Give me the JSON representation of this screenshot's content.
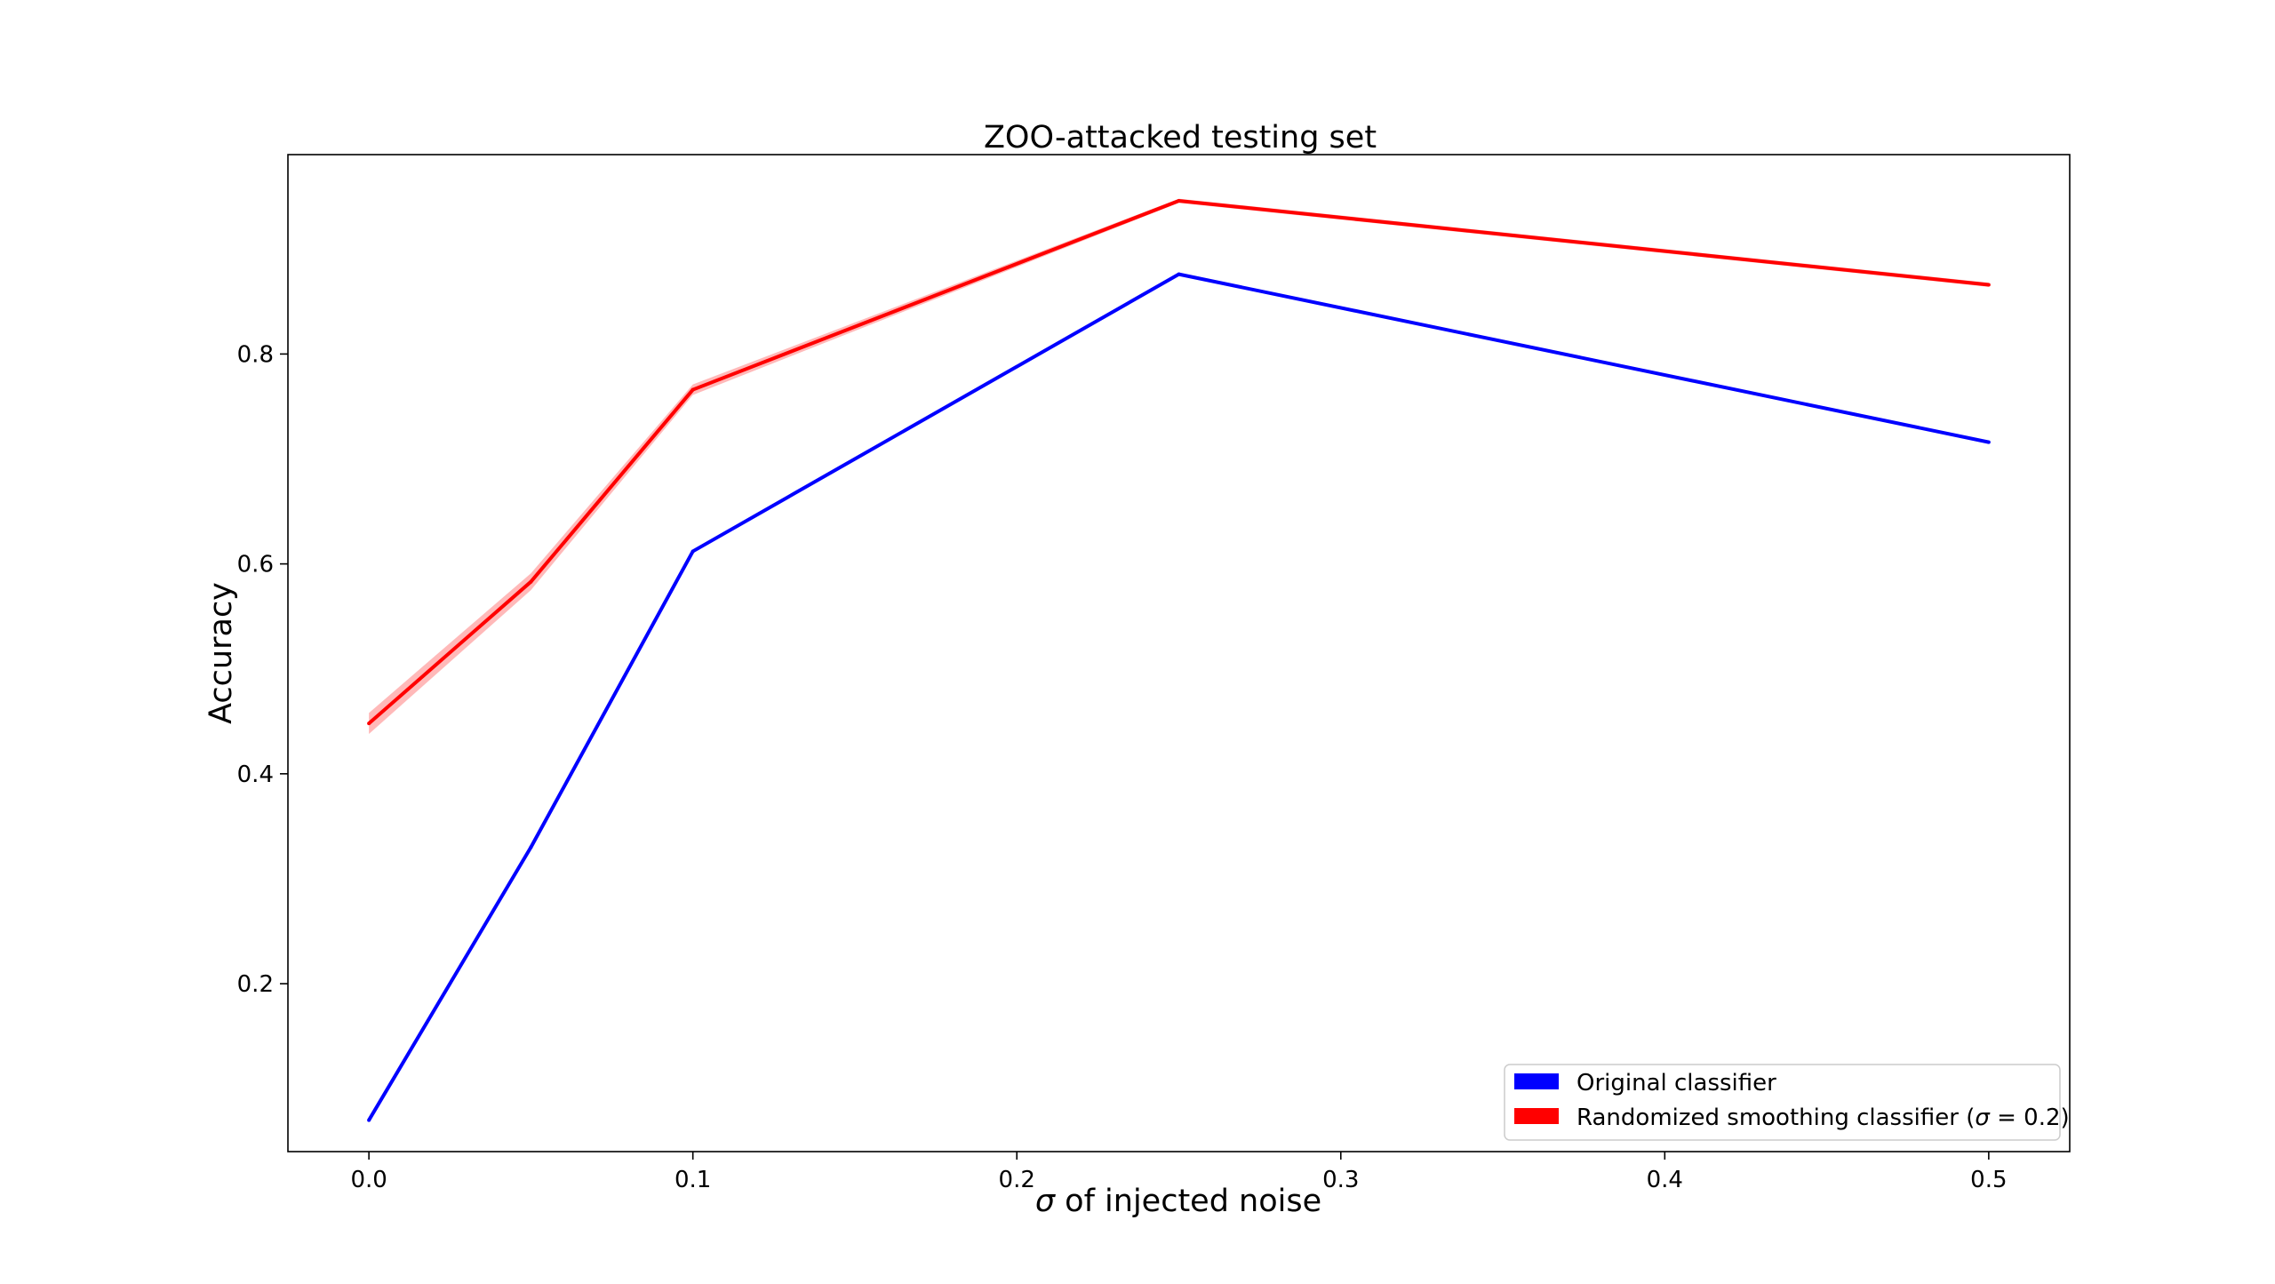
{
  "chart_data": {
    "type": "line",
    "title": "ZOO-attacked testing set",
    "xlabel_symbol": "σ",
    "xlabel_rest": " of injected noise",
    "ylabel": "Accuracy",
    "x": [
      0.0,
      0.05,
      0.1,
      0.25,
      0.5
    ],
    "xlim": [
      -0.025,
      0.525
    ],
    "ylim": [
      0.04,
      0.99
    ],
    "xticks": [
      0.0,
      0.1,
      0.2,
      0.3,
      0.4,
      0.5
    ],
    "xtick_labels": [
      "0.0",
      "0.1",
      "0.2",
      "0.3",
      "0.4",
      "0.5"
    ],
    "yticks": [
      0.2,
      0.4,
      0.6,
      0.8
    ],
    "ytick_labels": [
      "0.2",
      "0.4",
      "0.6",
      "0.8"
    ],
    "grid": false,
    "legend_position": "lower-right",
    "series": [
      {
        "name": "Original classifier",
        "color": "#0000ff",
        "values": [
          0.07,
          0.33,
          0.612,
          0.876,
          0.716
        ],
        "band": null
      },
      {
        "name_prefix": "Randomized smoothing classifier (",
        "name_symbol": "σ",
        "name_suffix": " = 0.2)",
        "color": "#ff0000",
        "band_color": "#ff8080",
        "values": [
          0.448,
          0.583,
          0.766,
          0.946,
          0.866
        ],
        "band": {
          "lower": [
            0.438,
            0.575,
            0.761,
            0.944,
            0.864
          ],
          "upper": [
            0.458,
            0.591,
            0.771,
            0.948,
            0.868
          ]
        }
      }
    ]
  }
}
